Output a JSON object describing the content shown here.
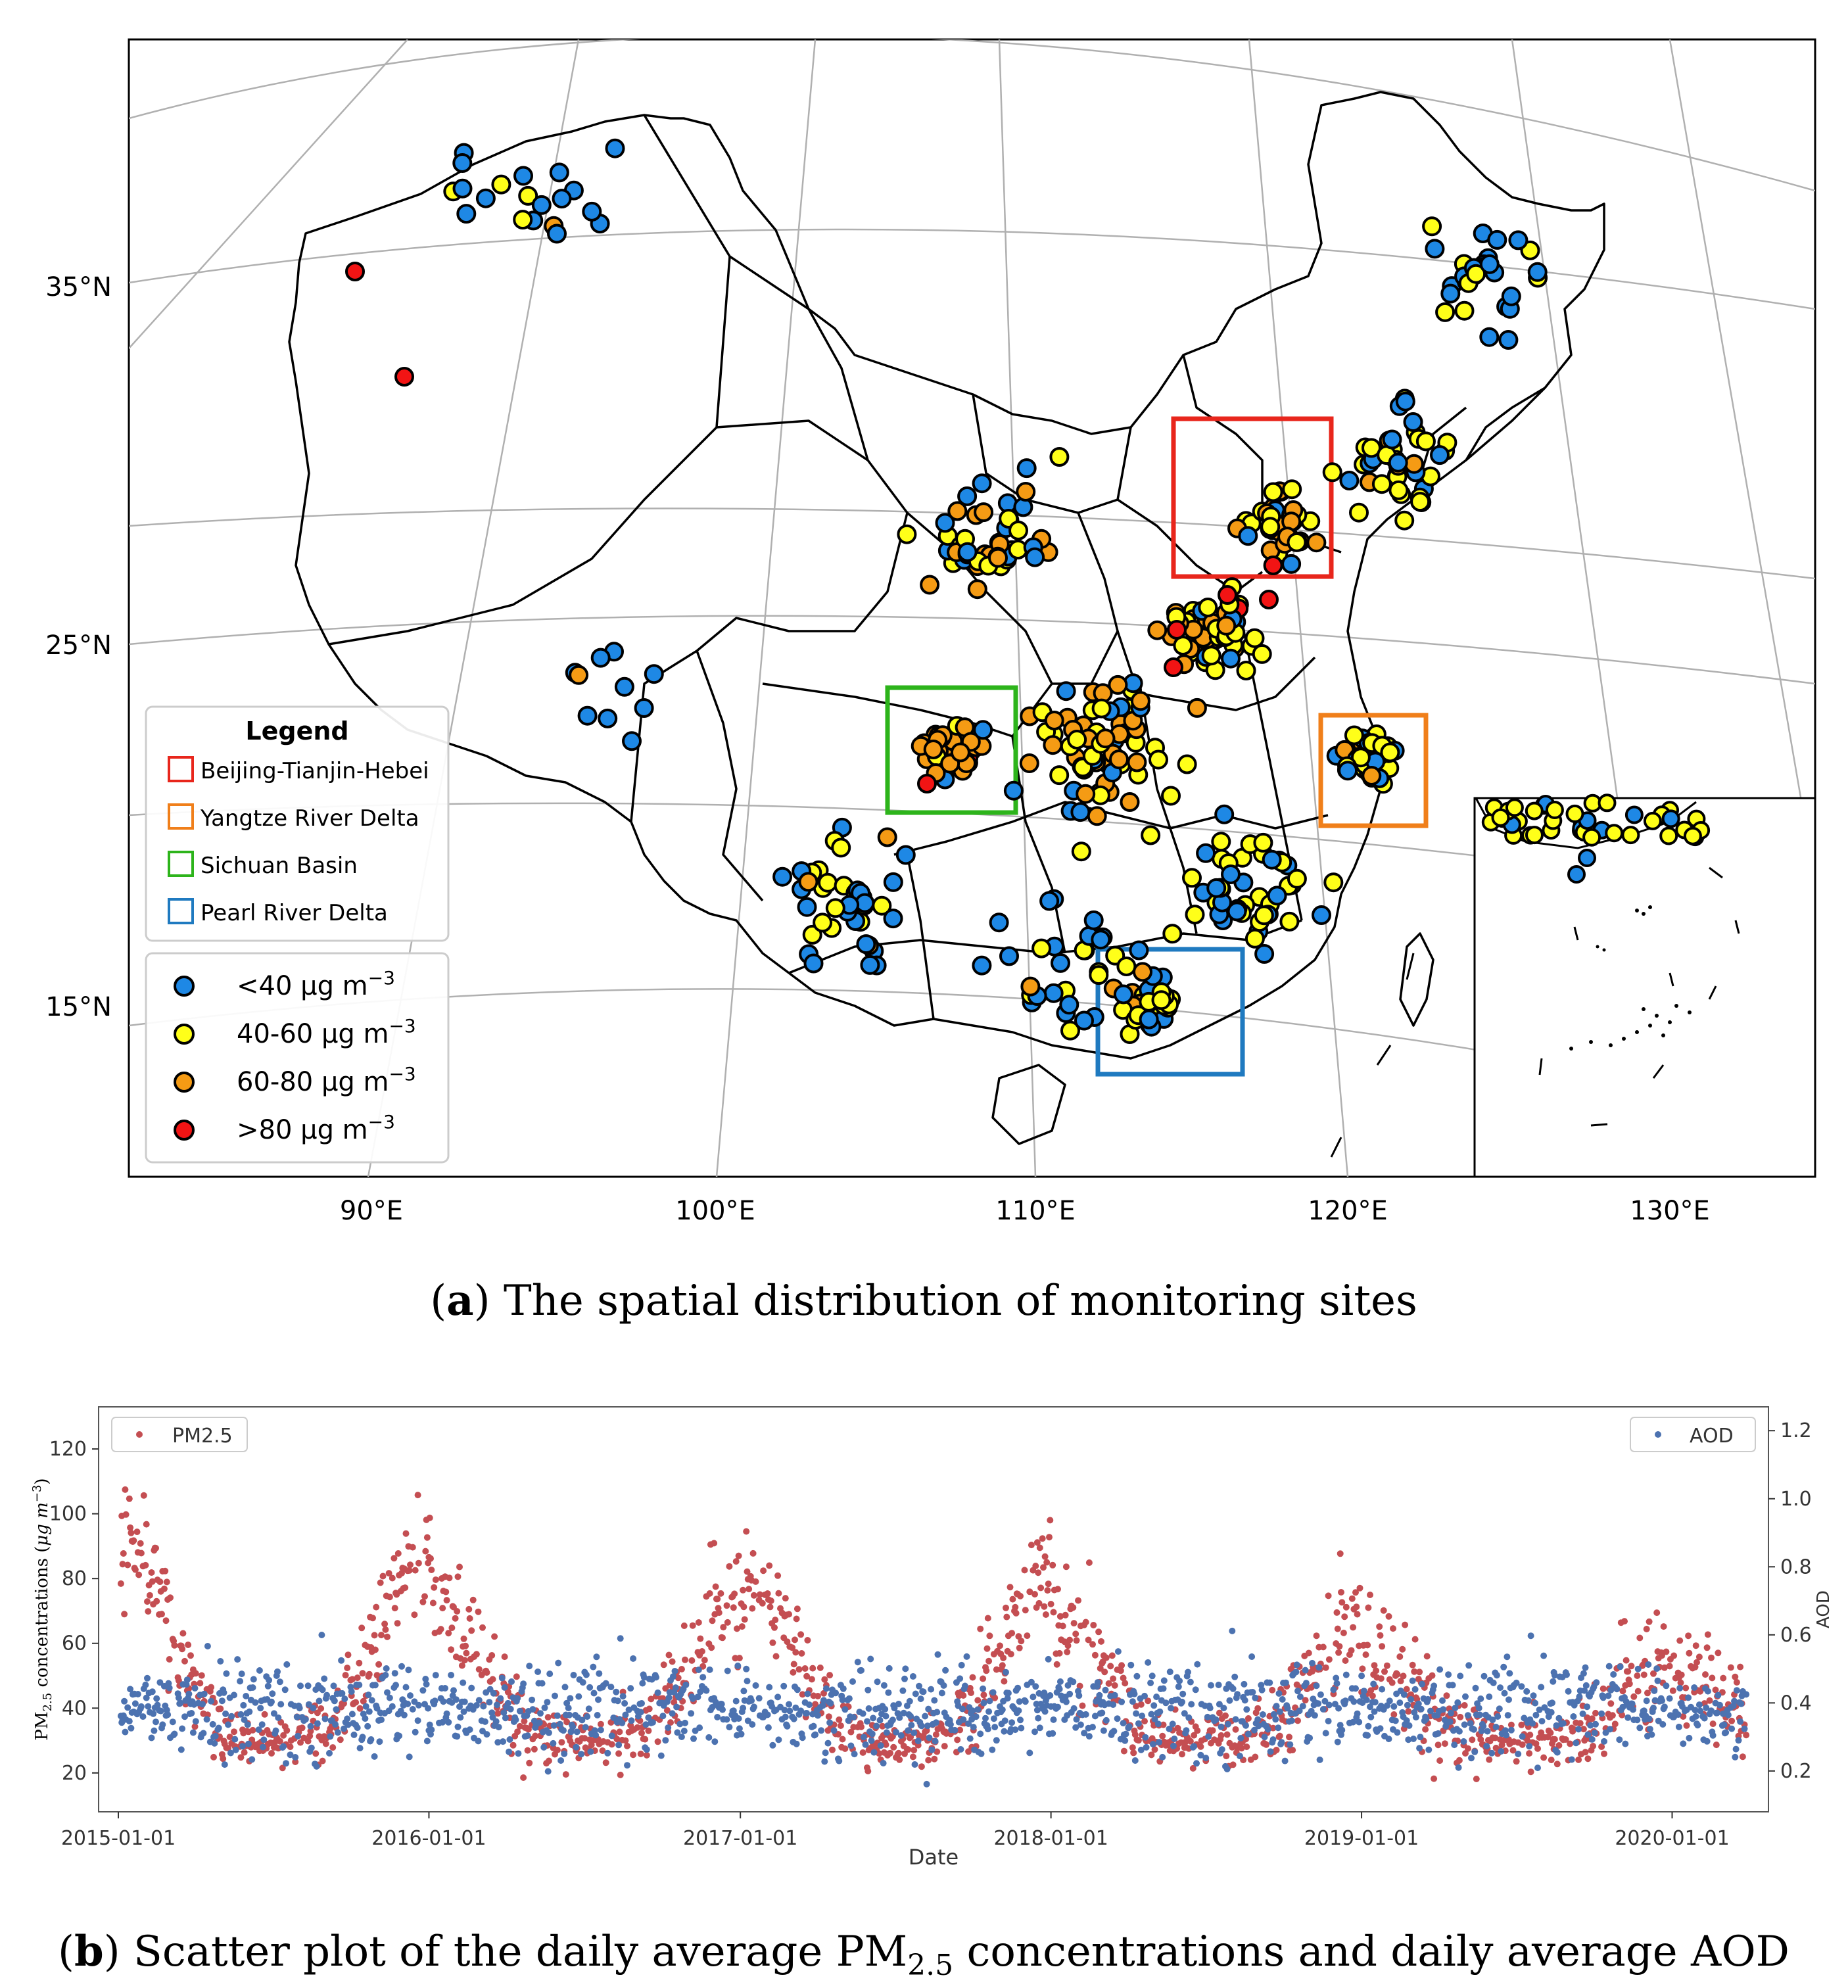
{
  "figure": {
    "caption_a": {
      "label": "a",
      "text": ") The spatial distribution of monitoring sites"
    },
    "caption_b": {
      "label": "b",
      "text_pre": ") Scatter plot of the daily average PM",
      "sub": "2.5",
      "text_post": " concentrations and daily average AOD"
    }
  },
  "map": {
    "lat_ticks": [
      "35°N",
      "25°N",
      "15°N"
    ],
    "lon_ticks": [
      "90°E",
      "100°E",
      "110°E",
      "120°E",
      "130°E"
    ],
    "legend": {
      "title": "Legend",
      "regions": [
        {
          "label": "Beijing-Tianjin-Hebei",
          "color": "#e8261c"
        },
        {
          "label": "Yangtze River Delta",
          "color": "#f07f1a"
        },
        {
          "label": "Sichuan Basin",
          "color": "#2db41b"
        },
        {
          "label": "Pearl River Delta",
          "color": "#1f7ac0"
        }
      ],
      "classes": [
        {
          "label": "<40 μg m",
          "sup": "−3",
          "color": "#1e88e5"
        },
        {
          "label": "40-60 μg m",
          "sup": "−3",
          "color": "#ffff19"
        },
        {
          "label": "60-80 μg m",
          "sup": "−3",
          "color": "#f59b14"
        },
        {
          "label": ">80 μg m",
          "sup": "−3",
          "color": "#f21414"
        }
      ]
    }
  },
  "chart_data": {
    "type": "scatter",
    "xlabel": "Date",
    "ylabel_left": "PM2.5 concentrations (μg m−3)",
    "ylabel_left_parts": {
      "pre": "PM",
      "sub": "2.5",
      "post": " concentrations (",
      "unit": "μg m",
      "sup": "−3",
      "close": ")"
    },
    "ylabel_right": "AOD",
    "x_ticks": [
      "2015-01-01",
      "2016-01-01",
      "2017-01-01",
      "2018-01-01",
      "2019-01-01",
      "2020-01-01"
    ],
    "x_range": [
      "2015-01-01",
      "2020-03-31"
    ],
    "y_left_ticks": [
      20,
      40,
      60,
      80,
      100,
      120
    ],
    "y_left_range": [
      8,
      133
    ],
    "y_right_ticks": [
      "0.2",
      "0.4",
      "0.6",
      "0.8",
      "1.0",
      "1.2"
    ],
    "y_right_range": [
      0.08,
      1.27
    ],
    "series": [
      {
        "name": "PM2.5",
        "color": "#c44e52",
        "axis": "left",
        "seasonal_winter_means": [
          92,
          75,
          82,
          68,
          58,
          50
        ],
        "summer_mean": 30
      },
      {
        "name": "AOD",
        "color": "#4c72b0",
        "axis": "right",
        "mean": 0.38,
        "spread": 0.11
      }
    ],
    "legend_left": "PM2.5",
    "legend_right": "AOD"
  }
}
